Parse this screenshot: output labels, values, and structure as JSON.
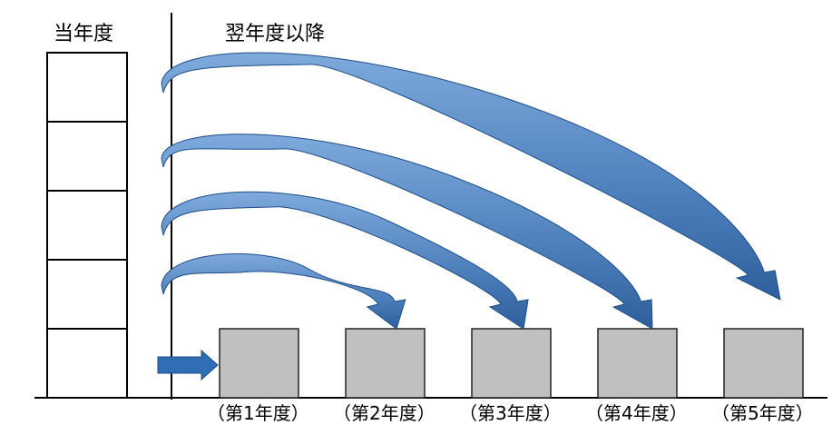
{
  "header": {
    "current_year": "当年度",
    "following_years": "翌年度以降"
  },
  "years": [
    {
      "label": "（第1年度）"
    },
    {
      "label": "（第2年度）"
    },
    {
      "label": "（第3年度）"
    },
    {
      "label": "（第4年度）"
    },
    {
      "label": "（第5年度）"
    }
  ],
  "colors": {
    "arrow_fill": "#4f81bd",
    "arrow_light": "#7eaadc",
    "arrow_dark": "#1f4e8a",
    "box_fill": "#c0c0c0"
  }
}
